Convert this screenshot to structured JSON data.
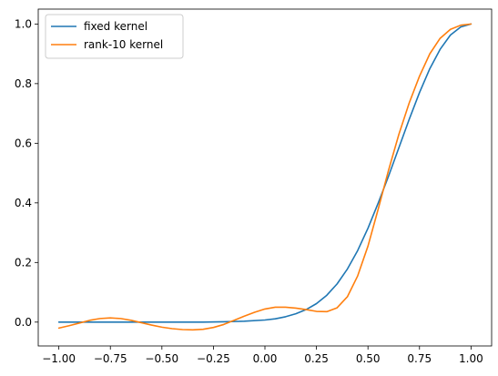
{
  "chart_data": {
    "type": "line",
    "title": "",
    "xlabel": "",
    "ylabel": "",
    "xlim": [
      -1.1,
      1.1
    ],
    "ylim": [
      -0.08,
      1.05
    ],
    "x_ticks": [
      -1.0,
      -0.75,
      -0.5,
      -0.25,
      0.0,
      0.25,
      0.5,
      0.75,
      1.0
    ],
    "x_tick_labels": [
      "−1.00",
      "−0.75",
      "−0.50",
      "−0.25",
      "0.00",
      "0.25",
      "0.50",
      "0.75",
      "1.00"
    ],
    "y_ticks": [
      0.0,
      0.2,
      0.4,
      0.6,
      0.8,
      1.0
    ],
    "y_tick_labels": [
      "0.0",
      "0.2",
      "0.4",
      "0.6",
      "0.8",
      "1.0"
    ],
    "grid": false,
    "legend_position": "top-left",
    "series": [
      {
        "name": "fixed kernel",
        "color": "#1f77b4",
        "x": [
          -1.0,
          -0.9,
          -0.8,
          -0.7,
          -0.6,
          -0.5,
          -0.4,
          -0.3,
          -0.2,
          -0.1,
          0.0,
          0.05,
          0.1,
          0.15,
          0.2,
          0.25,
          0.3,
          0.35,
          0.4,
          0.45,
          0.5,
          0.55,
          0.6,
          0.65,
          0.7,
          0.75,
          0.8,
          0.85,
          0.9,
          0.95,
          1.0
        ],
        "y": [
          0.0,
          0.0,
          0.0,
          0.0,
          0.0,
          0.0,
          0.0,
          0.0,
          0.001,
          0.003,
          0.007,
          0.011,
          0.018,
          0.028,
          0.042,
          0.062,
          0.09,
          0.128,
          0.178,
          0.24,
          0.315,
          0.4,
          0.49,
          0.585,
          0.68,
          0.77,
          0.85,
          0.915,
          0.963,
          0.99,
          1.0
        ]
      },
      {
        "name": "rank-10 kernel",
        "color": "#ff7f0e",
        "x": [
          -1.0,
          -0.95,
          -0.9,
          -0.85,
          -0.8,
          -0.75,
          -0.7,
          -0.65,
          -0.6,
          -0.55,
          -0.5,
          -0.45,
          -0.4,
          -0.35,
          -0.3,
          -0.25,
          -0.2,
          -0.15,
          -0.1,
          -0.05,
          0.0,
          0.05,
          0.1,
          0.15,
          0.2,
          0.25,
          0.3,
          0.35,
          0.4,
          0.45,
          0.5,
          0.55,
          0.6,
          0.65,
          0.7,
          0.75,
          0.8,
          0.85,
          0.9,
          0.95,
          1.0
        ],
        "y": [
          -0.02,
          -0.012,
          -0.003,
          0.006,
          0.012,
          0.014,
          0.012,
          0.006,
          -0.002,
          -0.01,
          -0.017,
          -0.022,
          -0.025,
          -0.026,
          -0.024,
          -0.018,
          -0.008,
          0.006,
          0.02,
          0.033,
          0.044,
          0.05,
          0.05,
          0.047,
          0.042,
          0.036,
          0.035,
          0.048,
          0.085,
          0.155,
          0.255,
          0.38,
          0.51,
          0.63,
          0.735,
          0.825,
          0.9,
          0.952,
          0.982,
          0.996,
          1.0
        ]
      }
    ]
  }
}
